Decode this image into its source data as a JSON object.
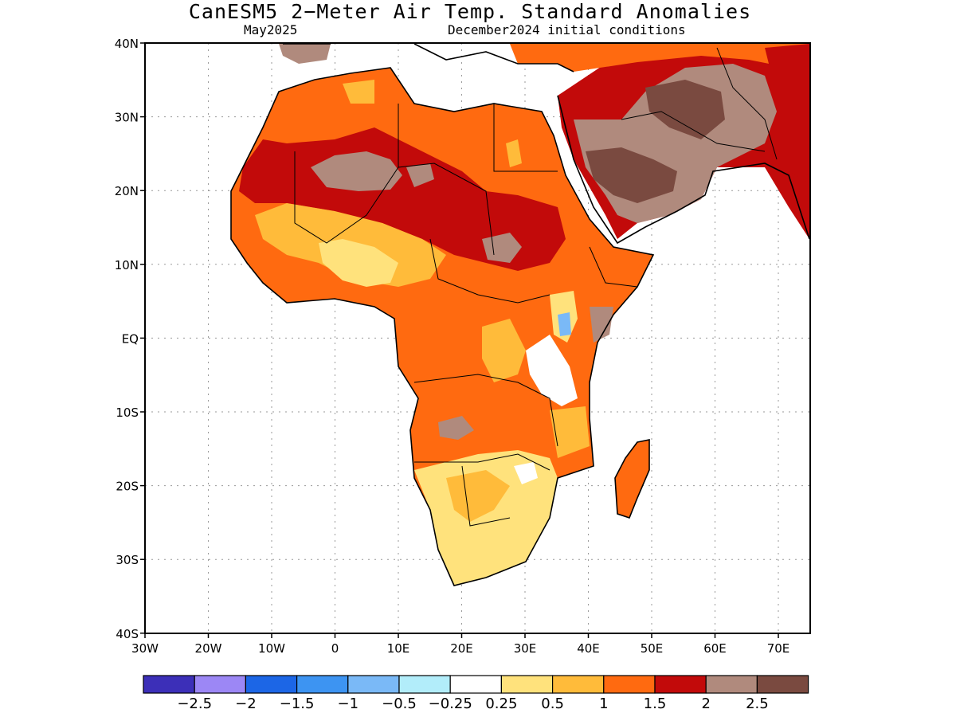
{
  "title": "CanESM5 2−Meter Air Temp. Standard Anomalies",
  "subtitle_left": "May2025",
  "subtitle_right": "December2024 initial conditions",
  "lon_ticks": [
    "30W",
    "20W",
    "10W",
    "0",
    "10E",
    "20E",
    "30E",
    "40E",
    "50E",
    "60E",
    "70E"
  ],
  "lat_ticks": [
    "40N",
    "30N",
    "20N",
    "10N",
    "EQ",
    "10S",
    "20S",
    "30S",
    "40S"
  ],
  "colorbar": {
    "colors": [
      "#3c2fb8",
      "#9c87f5",
      "#1c66e6",
      "#3d94f2",
      "#7ab9f7",
      "#b2edfa",
      "#ffffff",
      "#ffe27c",
      "#ffbb3a",
      "#ff6a10",
      "#c20a0a",
      "#b08a7d",
      "#7a4a40"
    ],
    "labels": [
      "−2.5",
      "−2",
      "−1.5",
      "−1",
      "−0.5",
      "−0.25",
      "0.25",
      "0.5",
      "1",
      "1.5",
      "2",
      "2.5"
    ]
  },
  "regions": [
    {
      "name": "Sahara / North Africa",
      "anomaly_class": "1.5 to 2.5"
    },
    {
      "name": "Arabian Peninsula & Middle East",
      "anomaly_class": "2 to >2.5"
    },
    {
      "name": "West Africa coast",
      "anomaly_class": "0.5 to 1.5"
    },
    {
      "name": "Central Africa",
      "anomaly_class": "1 to 1.5"
    },
    {
      "name": "East Africa (Lake Victoria)",
      "anomaly_class": "-0.5 to 0.25"
    },
    {
      "name": "Southern Africa",
      "anomaly_class": "0.25 to 1"
    },
    {
      "name": "Madagascar",
      "anomaly_class": "1 to 1.5"
    }
  ]
}
